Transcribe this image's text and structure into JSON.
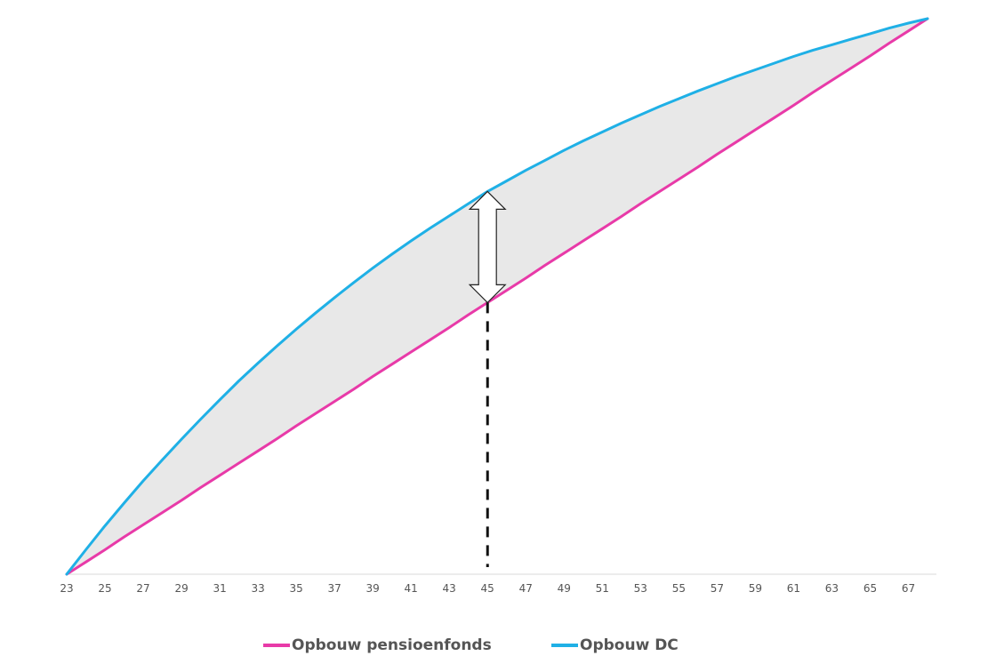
{
  "chart_data": {
    "type": "line",
    "title": "",
    "xlabel": "",
    "ylabel": "",
    "x": [
      23,
      24,
      25,
      26,
      27,
      28,
      29,
      30,
      31,
      32,
      33,
      34,
      35,
      36,
      37,
      38,
      39,
      40,
      41,
      42,
      43,
      44,
      45,
      46,
      47,
      48,
      49,
      50,
      51,
      52,
      53,
      54,
      55,
      56,
      57,
      58,
      59,
      60,
      61,
      62,
      63,
      64,
      65,
      66,
      67,
      68
    ],
    "xticks": [
      "23",
      "25",
      "27",
      "29",
      "31",
      "33",
      "35",
      "37",
      "39",
      "41",
      "43",
      "45",
      "47",
      "49",
      "51",
      "53",
      "55",
      "57",
      "59",
      "61",
      "63",
      "65",
      "67"
    ],
    "xlim": [
      23,
      68
    ],
    "ylim": [
      0,
      100
    ],
    "y_axis_labels_shown": false,
    "grid": false,
    "legend_position": "bottom",
    "series": [
      {
        "name": "Opbouw pensioenfonds",
        "color": "#e83aa8",
        "values": [
          0,
          2.2,
          4.4,
          6.7,
          8.9,
          11.1,
          13.3,
          15.6,
          17.8,
          20.0,
          22.2,
          24.4,
          26.7,
          28.9,
          31.1,
          33.3,
          35.6,
          37.8,
          40.0,
          42.2,
          44.4,
          46.7,
          48.9,
          51.1,
          53.3,
          55.6,
          57.8,
          60.0,
          62.2,
          64.4,
          66.7,
          68.9,
          71.1,
          73.3,
          75.6,
          77.8,
          80.0,
          82.2,
          84.4,
          86.7,
          88.9,
          91.1,
          93.3,
          95.6,
          97.8,
          100
        ]
      },
      {
        "name": "Opbouw DC",
        "color": "#1fb0e6",
        "values": [
          0,
          4.4,
          8.7,
          12.8,
          16.8,
          20.6,
          24.3,
          27.9,
          31.4,
          34.8,
          38.0,
          41.1,
          44.1,
          47.0,
          49.8,
          52.5,
          55.1,
          57.6,
          60.0,
          62.3,
          64.5,
          66.7,
          68.9,
          70.8,
          72.7,
          74.5,
          76.3,
          78.0,
          79.6,
          81.2,
          82.7,
          84.2,
          85.6,
          87.0,
          88.3,
          89.6,
          90.8,
          92.0,
          93.2,
          94.3,
          95.3,
          96.3,
          97.3,
          98.3,
          99.2,
          100
        ]
      }
    ],
    "shaded_region": {
      "between": [
        "Opbouw pensioenfonds",
        "Opbouw DC"
      ],
      "color": "#e8e8e8"
    },
    "annotations": {
      "double_arrow_at_x": 45,
      "dashed_line_at_x": 45
    }
  },
  "legend": {
    "items": [
      {
        "label": "Opbouw pensioenfonds",
        "color": "#e83aa8"
      },
      {
        "label": "Opbouw DC",
        "color": "#1fb0e6"
      }
    ]
  }
}
